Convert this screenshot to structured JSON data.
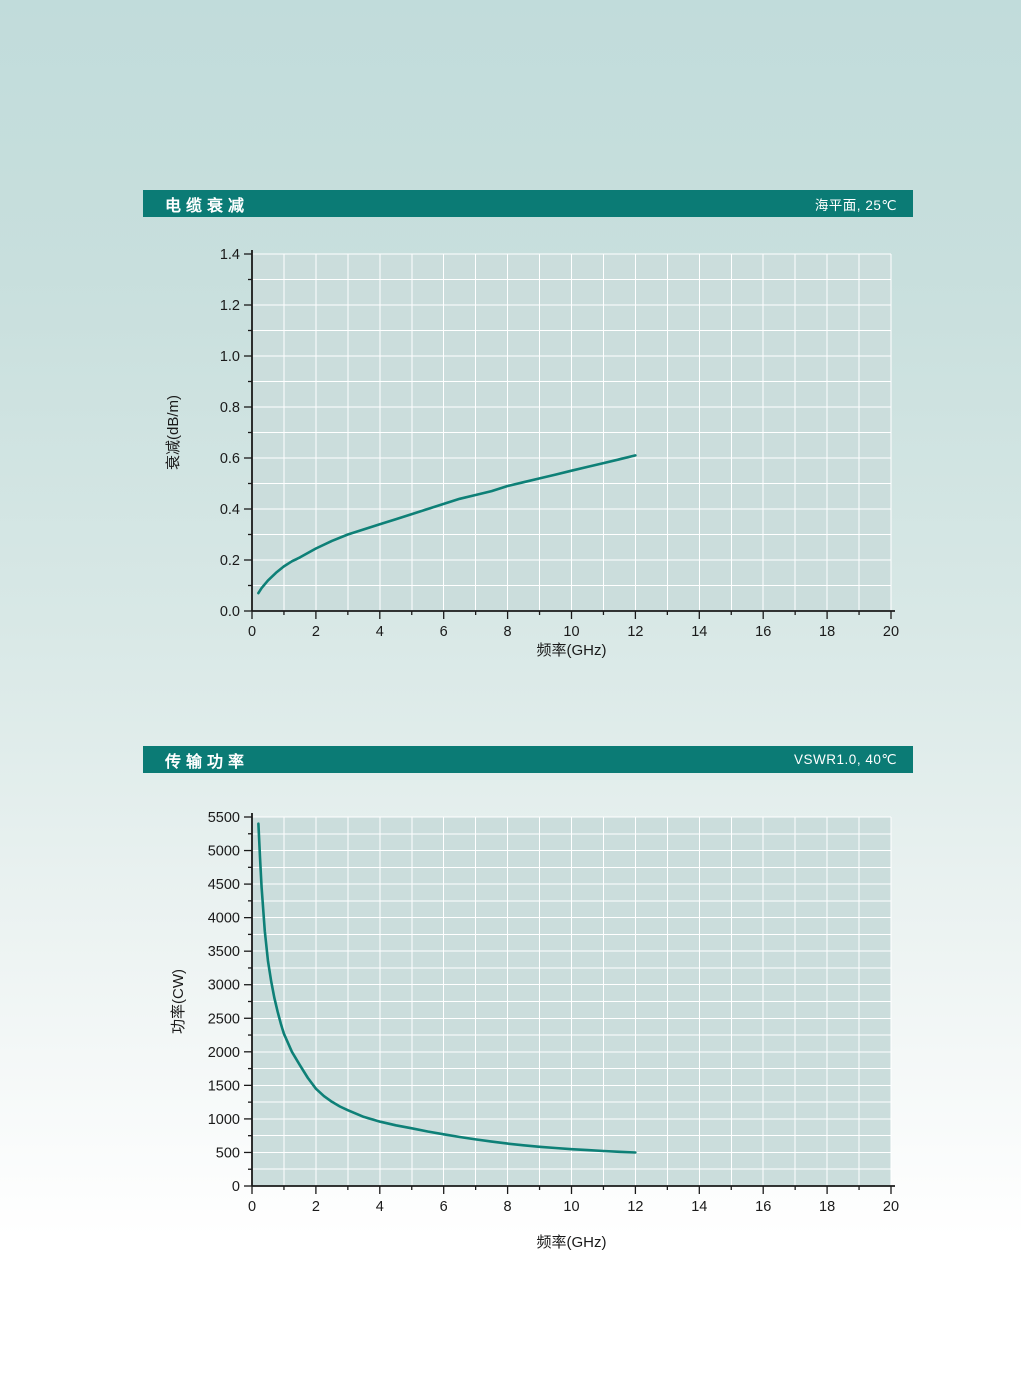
{
  "colors": {
    "header_bar": "#0b7b75",
    "curve": "#0e8077",
    "plot_bg": "#cbdddc",
    "grid": "#ffffff",
    "axis": "#1a1a1a"
  },
  "headers": [
    {
      "title": "电缆衰减",
      "condition": "海平面, 25℃"
    },
    {
      "title": "传输功率",
      "condition": "VSWR1.0, 40℃"
    }
  ],
  "chart_data": [
    {
      "type": "line",
      "title": "电缆衰减",
      "subtitle": "海平面, 25℃",
      "xlabel": "频率(GHz)",
      "ylabel": "衰减(dB/m)",
      "xlim": [
        0,
        20
      ],
      "ylim": [
        0,
        1.4
      ],
      "xtick_major": 2,
      "xtick_minor": 1,
      "ytick_major": 0.2,
      "ytick_minor": 0.1,
      "x_decimals": 0,
      "y_decimals": 1,
      "grid": true,
      "legend": false,
      "series": [
        {
          "name": "衰减",
          "x": [
            0.2,
            0.3,
            0.5,
            0.75,
            1,
            1.25,
            1.5,
            2,
            2.5,
            3,
            3.5,
            4,
            4.5,
            5,
            5.5,
            6,
            6.5,
            7,
            7.5,
            8,
            8.5,
            9,
            9.5,
            10,
            10.5,
            11,
            11.5,
            12
          ],
          "y": [
            0.07,
            0.09,
            0.12,
            0.15,
            0.175,
            0.195,
            0.21,
            0.245,
            0.275,
            0.3,
            0.32,
            0.34,
            0.36,
            0.38,
            0.4,
            0.42,
            0.44,
            0.455,
            0.47,
            0.49,
            0.505,
            0.52,
            0.535,
            0.55,
            0.565,
            0.58,
            0.595,
            0.61
          ]
        }
      ]
    },
    {
      "type": "line",
      "title": "传输功率",
      "subtitle": "VSWR1.0, 40℃",
      "xlabel": "频率(GHz)",
      "ylabel": "功率(CW)",
      "xlim": [
        0,
        20
      ],
      "ylim": [
        0,
        5500
      ],
      "xtick_major": 2,
      "xtick_minor": 1,
      "ytick_major": 500,
      "ytick_minor": 250,
      "x_decimals": 0,
      "y_decimals": 0,
      "grid": true,
      "legend": false,
      "series": [
        {
          "name": "功率",
          "x": [
            0.2,
            0.25,
            0.3,
            0.4,
            0.5,
            0.6,
            0.7,
            0.8,
            0.9,
            1,
            1.25,
            1.5,
            1.75,
            2,
            2.25,
            2.5,
            2.75,
            3,
            3.5,
            4,
            4.5,
            5,
            5.5,
            6,
            6.5,
            7,
            7.5,
            8,
            8.5,
            9,
            9.5,
            10,
            10.5,
            11,
            11.5,
            12
          ],
          "y": [
            5400,
            4900,
            4450,
            3800,
            3350,
            3050,
            2800,
            2600,
            2420,
            2270,
            2000,
            1800,
            1610,
            1450,
            1340,
            1255,
            1185,
            1130,
            1030,
            960,
            905,
            860,
            812,
            770,
            730,
            695,
            662,
            632,
            607,
            585,
            566,
            549,
            535,
            522,
            510,
            500
          ]
        }
      ]
    }
  ]
}
